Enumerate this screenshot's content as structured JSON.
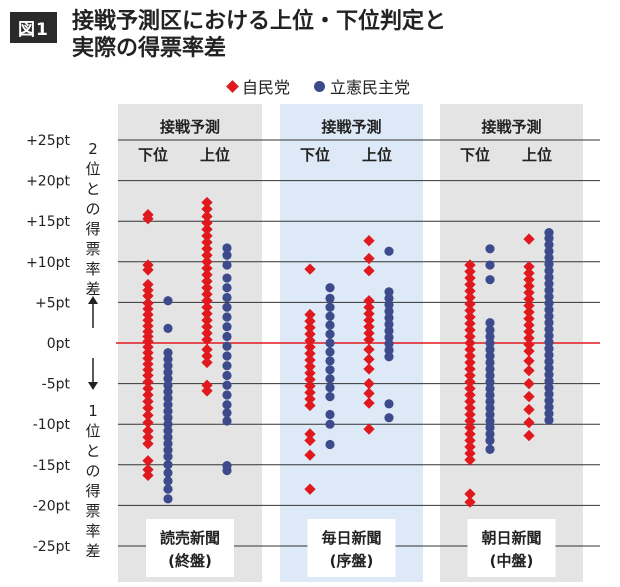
{
  "header": {
    "badge": "図1",
    "title_line1": "接戦予測区における上位・下位判定と",
    "title_line2": "実際の得票率差"
  },
  "legend": {
    "ldp": "自民党",
    "cdp": "立憲民主党"
  },
  "colors": {
    "ldp": "#e0191f",
    "cdp": "#3d4a8c",
    "panel": "#e4e4e4",
    "panel_highlight": "#dde9f6",
    "zero_line": "#e0191f",
    "grid": "#333333"
  },
  "chart_data": {
    "type": "scatter",
    "ylabel_upper": "2位との得票率差",
    "ylabel_lower": "1位との得票率差",
    "ylim": [
      -25,
      25
    ],
    "yticks": [
      25,
      20,
      15,
      10,
      5,
      0,
      -5,
      -10,
      -15,
      -20,
      -25
    ],
    "ytick_labels": [
      "+25pt",
      "+20pt",
      "+15pt",
      "+10pt",
      "+5pt",
      "0pt",
      "-5pt",
      "-10pt",
      "-15pt",
      "-20pt",
      "-25pt"
    ],
    "panel_header": "接戦予測",
    "group_labels": [
      "下位",
      "上位"
    ],
    "panels": [
      {
        "name_line1": "読売新聞",
        "name_line2": "(終盤)",
        "highlight": false,
        "groups": [
          {
            "label": "下位",
            "ldp": [
              15.8,
              15.3,
              9.6,
              9.0,
              7.2,
              6.5,
              5.8,
              4.9,
              4.2,
              3.5,
              2.8,
              2.1,
              1.4,
              0.8,
              0.2,
              -0.5,
              -1.2,
              -1.9,
              -2.6,
              -3.3,
              -4.0,
              -4.8,
              -5.6,
              -6.4,
              -7.2,
              -8.0,
              -8.9,
              -9.8,
              -10.8,
              -11.6,
              -12.4,
              -14.5,
              -15.6,
              -16.3
            ],
            "cdp": [
              5.2,
              1.8,
              -1.2,
              -2.0,
              -2.8,
              -3.6,
              -4.4,
              -5.2,
              -6.0,
              -6.8,
              -7.6,
              -8.4,
              -9.2,
              -10.0,
              -10.8,
              -11.6,
              -12.4,
              -13.2,
              -14.0,
              -15.0,
              -16.0,
              -17.0,
              -18.0,
              -19.2
            ]
          },
          {
            "label": "上位",
            "ldp": [
              17.3,
              16.5,
              15.6,
              14.8,
              14.0,
              13.2,
              12.4,
              11.6,
              10.8,
              10.0,
              9.2,
              8.4,
              7.6,
              6.8,
              6.0,
              5.2,
              4.4,
              3.6,
              2.8,
              2.0,
              1.2,
              0.4,
              -0.8,
              -1.6,
              -2.4,
              -5.2,
              -5.9
            ],
            "cdp": [
              11.7,
              10.8,
              9.6,
              8.0,
              6.8,
              5.6,
              4.4,
              3.2,
              2.0,
              0.8,
              -0.4,
              -1.6,
              -2.8,
              -4.0,
              -5.2,
              -6.4,
              -7.6,
              -8.6,
              -9.6,
              -15.1,
              -15.7
            ]
          }
        ]
      },
      {
        "name_line1": "毎日新聞",
        "name_line2": "(序盤)",
        "highlight": true,
        "groups": [
          {
            "label": "下位",
            "ldp": [
              9.1,
              3.5,
              2.7,
              1.9,
              1.1,
              0.3,
              -0.5,
              -1.3,
              -2.1,
              -2.9,
              -3.7,
              -4.5,
              -5.3,
              -6.1,
              -6.9,
              -7.7,
              -11.2,
              -12.0,
              -13.8,
              -18.0
            ],
            "cdp": [
              6.8,
              5.5,
              4.4,
              3.3,
              2.2,
              1.1,
              0.0,
              -1.1,
              -2.2,
              -3.3,
              -4.4,
              -5.5,
              -6.6,
              -8.8,
              -10.0,
              -12.5
            ]
          },
          {
            "label": "上位",
            "ldp": [
              12.6,
              10.4,
              8.9,
              5.2,
              4.4,
              3.6,
              2.8,
              2.0,
              1.2,
              0.4,
              -0.8,
              -2.0,
              -3.2,
              -5.0,
              -6.2,
              -7.4,
              -10.6
            ],
            "cdp": [
              11.3,
              6.3,
              5.5,
              4.7,
              3.9,
              3.1,
              2.3,
              1.5,
              0.7,
              -0.1,
              -0.9,
              -1.7,
              -7.5,
              -9.2
            ]
          }
        ]
      },
      {
        "name_line1": "朝日新聞",
        "name_line2": "(中盤)",
        "highlight": false,
        "groups": [
          {
            "label": "下位",
            "ldp": [
              9.6,
              8.8,
              8.0,
              7.2,
              6.4,
              5.6,
              4.8,
              4.0,
              3.2,
              2.4,
              1.6,
              0.8,
              0.0,
              -0.8,
              -1.6,
              -2.4,
              -3.2,
              -4.0,
              -4.8,
              -5.6,
              -6.4,
              -7.2,
              -8.0,
              -8.8,
              -9.6,
              -10.4,
              -11.2,
              -12.0,
              -12.8,
              -13.6,
              -14.4,
              -18.6,
              -19.6
            ],
            "cdp": [
              11.6,
              9.6,
              7.8,
              2.5,
              1.6,
              0.8,
              0.0,
              -0.8,
              -1.6,
              -2.4,
              -3.2,
              -4.0,
              -4.8,
              -5.6,
              -6.4,
              -7.2,
              -8.0,
              -8.8,
              -9.6,
              -10.4,
              -11.2,
              -12.0,
              -13.1
            ]
          },
          {
            "label": "上位",
            "ldp": [
              12.8,
              9.4,
              8.6,
              7.8,
              7.0,
              6.2,
              5.4,
              4.6,
              3.8,
              3.0,
              2.2,
              1.4,
              0.6,
              -0.2,
              -1.0,
              -2.2,
              -3.4,
              -5.0,
              -6.6,
              -8.2,
              -9.8,
              -11.4
            ],
            "cdp": [
              13.6,
              12.9,
              12.1,
              11.3,
              10.5,
              9.7,
              8.9,
              8.1,
              7.3,
              6.5,
              5.7,
              4.9,
              4.1,
              3.3,
              2.5,
              1.7,
              0.9,
              0.1,
              -0.7,
              -1.5,
              -2.3,
              -3.1,
              -3.9,
              -4.7,
              -5.5,
              -6.3,
              -7.1,
              -7.9,
              -8.7,
              -9.5
            ]
          }
        ]
      }
    ]
  }
}
